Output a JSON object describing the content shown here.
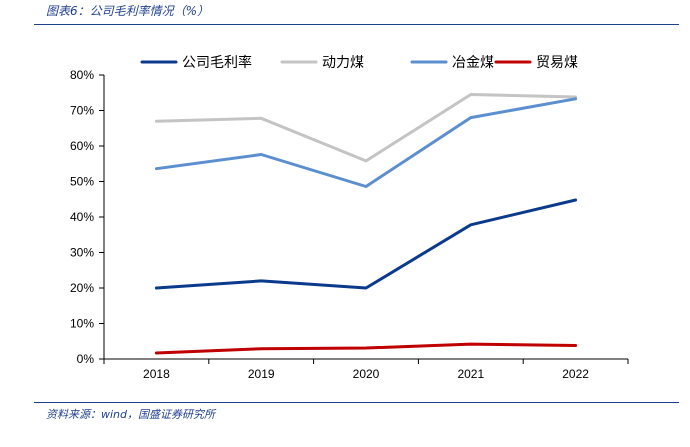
{
  "caption": "图表6：公司毛利率情况（%）",
  "source": "资料来源：wind，国盛证券研究所",
  "chart_data": {
    "type": "line",
    "title": "",
    "xlabel": "",
    "ylabel": "",
    "categories": [
      "2018",
      "2019",
      "2020",
      "2021",
      "2022"
    ],
    "ylim": [
      0,
      80
    ],
    "yticks": [
      "0%",
      "10%",
      "20%",
      "30%",
      "40%",
      "50%",
      "60%",
      "70%",
      "80%"
    ],
    "grid": false,
    "legend_position": "top",
    "series": [
      {
        "name": "公司毛利率",
        "color": "#0b3a8c",
        "values": [
          20.0,
          22.0,
          20.0,
          37.8,
          44.8
        ]
      },
      {
        "name": "动力煤",
        "color": "#c4c4c4",
        "values": [
          67.0,
          67.8,
          55.8,
          74.5,
          73.8
        ]
      },
      {
        "name": "冶金煤",
        "color": "#5b8fcf",
        "values": [
          53.6,
          57.6,
          48.6,
          68.0,
          73.3
        ]
      },
      {
        "name": "贸易煤",
        "color": "#c00000",
        "values": [
          1.7,
          2.9,
          3.1,
          4.2,
          3.8
        ]
      }
    ]
  }
}
